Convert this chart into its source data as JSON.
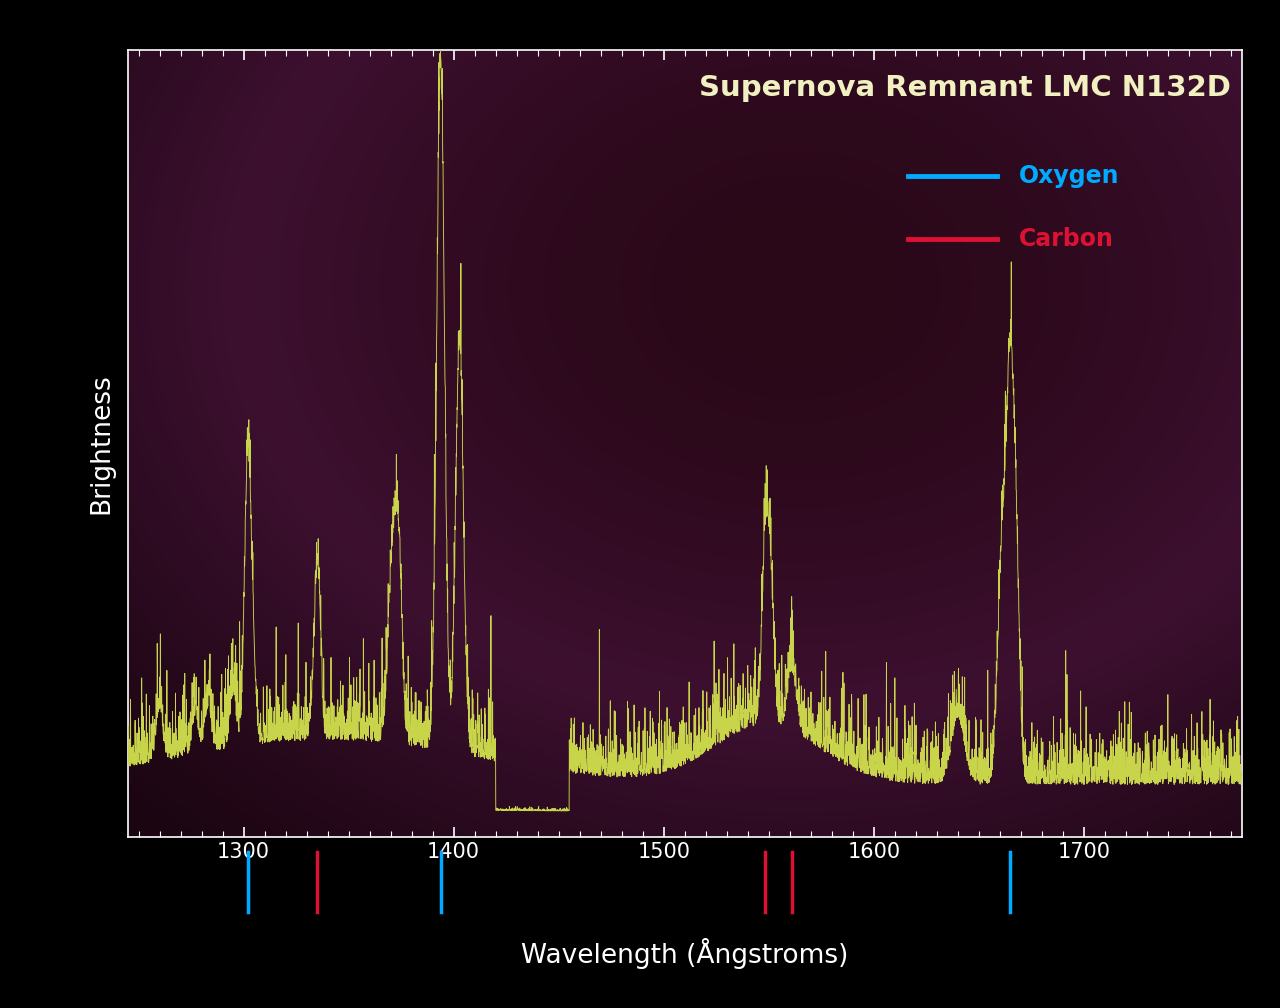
{
  "title": "Supernova Remnant LMC N132D",
  "xlabel": "Wavelength (Ångstroms)",
  "ylabel": "Brightness",
  "xlim": [
    1245,
    1775
  ],
  "ylim": [
    0,
    1.0
  ],
  "background_color": "#000000",
  "plot_bg_color": "#2a0818",
  "spectrum_color": "#c8d44a",
  "title_color": "#f0f0c0",
  "axis_label_color": "#ffffff",
  "tick_color": "#ffffff",
  "oxygen_color": "#00aaff",
  "carbon_color": "#dd1133",
  "oxygen_lines": [
    1302,
    1394,
    1665
  ],
  "carbon_lines": [
    1335,
    1548,
    1561
  ],
  "legend_oxygen_label": "Oxygen",
  "legend_carbon_label": "Carbon",
  "seed": 42
}
